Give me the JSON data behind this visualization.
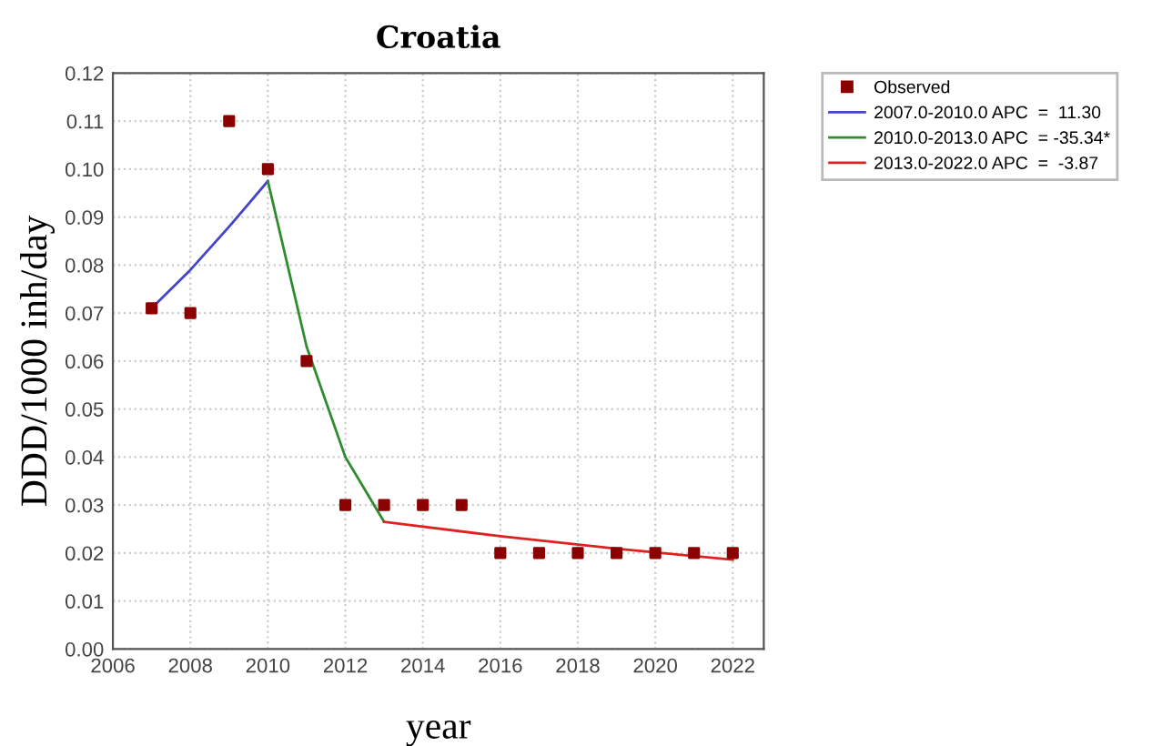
{
  "chart_data": {
    "type": "scatter",
    "title": "Croatia",
    "xlabel": "year",
    "ylabel": "DDD/1000 inh/day",
    "xlim": [
      2006,
      2022.8
    ],
    "xticks": [
      2006,
      2008,
      2010,
      2012,
      2014,
      2016,
      2018,
      2020,
      2022
    ],
    "ylim": [
      0,
      0.12
    ],
    "yticks": [
      {
        "value": 0,
        "label": "0.00"
      },
      {
        "value": 0.01,
        "label": "0.01"
      },
      {
        "value": 0.02,
        "label": "0.02"
      },
      {
        "value": 0.03,
        "label": "0.03"
      },
      {
        "value": 0.04,
        "label": "0.04"
      },
      {
        "value": 0.05,
        "label": "0.05"
      },
      {
        "value": 0.06,
        "label": "0.06"
      },
      {
        "value": 0.07,
        "label": "0.07"
      },
      {
        "value": 0.08,
        "label": "0.08"
      },
      {
        "value": 0.09,
        "label": "0.09"
      },
      {
        "value": 0.1,
        "label": "0.10"
      },
      {
        "value": 0.11,
        "label": "0.11"
      },
      {
        "value": 0.12,
        "label": "0.12"
      }
    ],
    "grid": true,
    "legend": "top right",
    "series": [
      {
        "name": "Observed",
        "marker": "square",
        "color": "#8b0000",
        "x": [
          2007,
          2008,
          2009,
          2010,
          2011,
          2012,
          2013,
          2014,
          2015,
          2016,
          2017,
          2018,
          2019,
          2020,
          2021,
          2022
        ],
        "values": [
          0.071,
          0.07,
          0.11,
          0.1,
          0.06,
          0.03,
          0.03,
          0.03,
          0.03,
          0.02,
          0.02,
          0.02,
          0.02,
          0.02,
          0.02,
          0.02
        ]
      },
      {
        "name": "2007.0-2010.0 APC  =  11.30",
        "type": "line",
        "marker": "none",
        "color": "#4444cc",
        "x": [
          2007,
          2008,
          2009,
          2010
        ],
        "values": [
          0.071,
          0.079,
          0.088,
          0.0975
        ]
      },
      {
        "name": "2010.0-2013.0 APC  = -35.34*",
        "type": "line",
        "marker": "none",
        "color": "#2e8b2e",
        "x": [
          2010,
          2011,
          2012,
          2013
        ],
        "values": [
          0.0975,
          0.063,
          0.04,
          0.0265
        ]
      },
      {
        "name": "2013.0-2022.0 APC  =  -3.87",
        "type": "line",
        "marker": "none",
        "color": "#dd2222",
        "x": [
          2013,
          2016,
          2019,
          2022
        ],
        "values": [
          0.0265,
          0.0235,
          0.0209,
          0.0186
        ]
      }
    ]
  }
}
